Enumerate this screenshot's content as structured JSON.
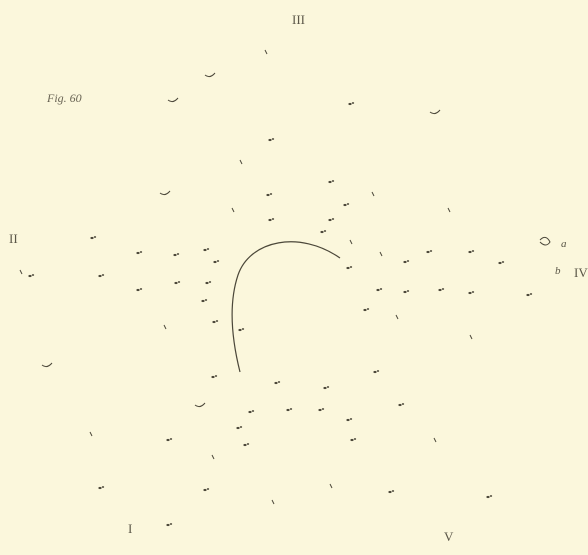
{
  "figure_label": "Fig. 60",
  "sector_labels": {
    "top": "III",
    "left": "II",
    "right": "IV",
    "bottom_left": "I",
    "bottom_right": "V"
  },
  "annotations": {
    "a": "a",
    "b": "b"
  },
  "colors": {
    "paper": "#fbf7dc",
    "ink": "#5a5647",
    "mark": "#4b4739"
  }
}
